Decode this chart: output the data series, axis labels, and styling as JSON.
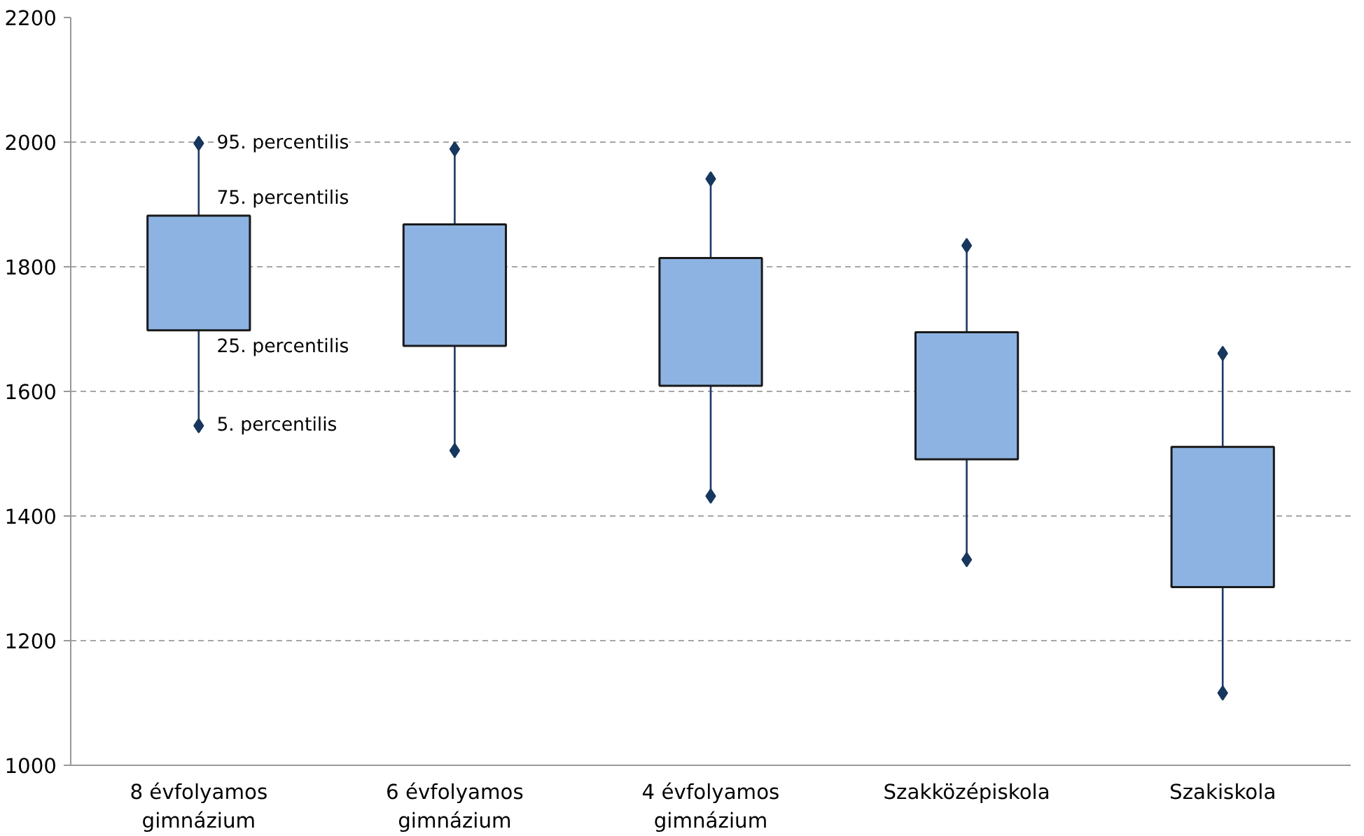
{
  "chart_data": {
    "type": "box",
    "categories": [
      "8 évfolyamos\ngimnázium",
      "6 évfolyamos\ngimnázium",
      "4 évfolyamos\ngimnázium",
      "Szakközépiskola",
      "Szakiskola"
    ],
    "boxes": [
      {
        "low": 1545,
        "q1": 1698,
        "q3": 1882,
        "high": 1998
      },
      {
        "low": 1505,
        "q1": 1673,
        "q3": 1868,
        "high": 1989
      },
      {
        "low": 1432,
        "q1": 1609,
        "q3": 1814,
        "high": 1941
      },
      {
        "low": 1330,
        "q1": 1491,
        "q3": 1695,
        "high": 1834
      },
      {
        "low": 1116,
        "q1": 1286,
        "q3": 1511,
        "high": 1661
      }
    ],
    "series": [
      {
        "type": "scatter",
        "color": "#17375e",
        "marker": "diamond",
        "x": [
          "8 évfolyamos\ngimnázium",
          "8 évfolyamos\ngimnázium",
          "6 évfolyamos\ngimnázium",
          "6 évfolyamos\ngimnázium",
          "4 évfolyamos\ngimnázium",
          "4 évfolyamos\ngimnázium",
          "Szakközépiskola",
          "Szakközépiskola",
          "Szakiskola",
          "Szakiskola"
        ],
        "values": [
          1545,
          1998,
          1505,
          1989,
          1432,
          1941,
          1330,
          1834,
          1116,
          1661
        ]
      }
    ],
    "color": "#8db3e2",
    "ylim": [
      1000,
      2200
    ],
    "yticks": [
      1000,
      1200,
      1400,
      1600,
      2000,
      1800,
      2200
    ],
    "grid": "y",
    "annotations": [
      "95. percentilis",
      "75. percentilis",
      "25. percentilis",
      "5. percentilis"
    ]
  }
}
